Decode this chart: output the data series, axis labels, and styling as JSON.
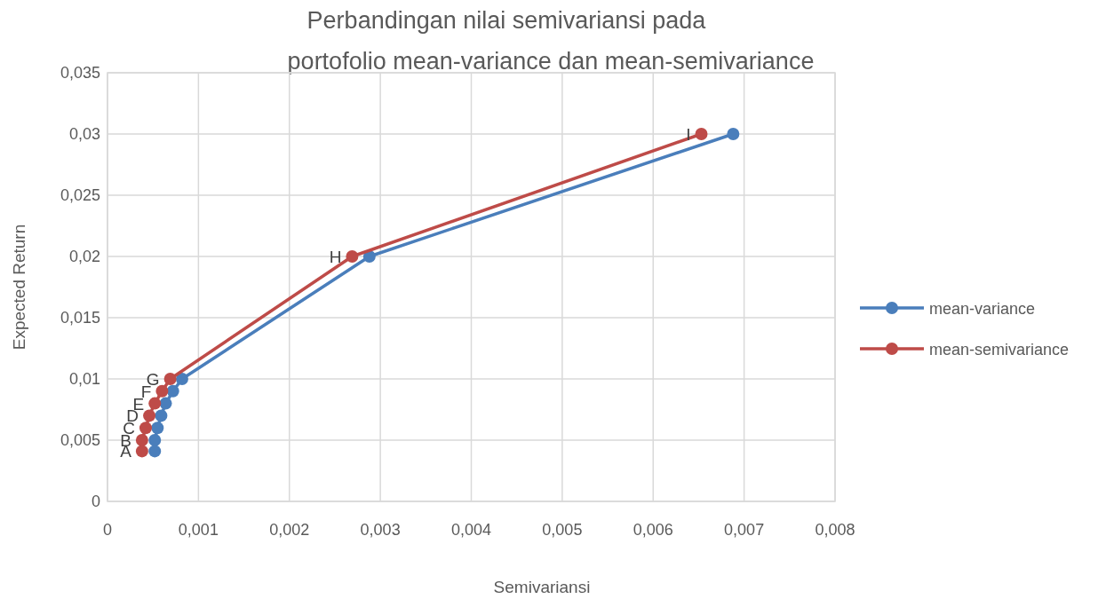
{
  "chart_data": {
    "type": "line",
    "title": "Perbandingan nilai semivariansi pada portofolio mean-variance dan mean-semivariance",
    "xlabel": "Semivariansi",
    "ylabel": "Expected Return",
    "series": [
      {
        "name": "mean-variance",
        "color": "#4a7ebb",
        "x": [
          0.00052,
          0.00052,
          0.00055,
          0.00059,
          0.00064,
          0.00072,
          0.00082,
          0.00288,
          0.00688
        ],
        "values": [
          0.0041,
          0.005,
          0.006,
          0.007,
          0.008,
          0.009,
          0.01,
          0.02,
          0.03
        ]
      },
      {
        "name": "mean-semivariance",
        "color": "#be4b48",
        "x": [
          0.00038,
          0.00038,
          0.00042,
          0.00046,
          0.00052,
          0.0006,
          0.00069,
          0.00269,
          0.00653
        ],
        "values": [
          0.0041,
          0.005,
          0.006,
          0.007,
          0.008,
          0.009,
          0.01,
          0.02,
          0.03
        ]
      }
    ],
    "annotations": [
      {
        "text": "A",
        "x": 0.00038,
        "y": 0.0041
      },
      {
        "text": "B",
        "x": 0.00038,
        "y": 0.005
      },
      {
        "text": "C",
        "x": 0.00042,
        "y": 0.006
      },
      {
        "text": "D",
        "x": 0.00046,
        "y": 0.007
      },
      {
        "text": "E",
        "x": 0.00052,
        "y": 0.008
      },
      {
        "text": "F",
        "x": 0.0006,
        "y": 0.009
      },
      {
        "text": "G",
        "x": 0.00069,
        "y": 0.01
      },
      {
        "text": "H",
        "x": 0.00269,
        "y": 0.02
      },
      {
        "text": "I",
        "x": 0.00653,
        "y": 0.03
      }
    ],
    "xlim": [
      0,
      0.008
    ],
    "xticks": [
      0,
      {
        "value": 0.001,
        "label": "0,001"
      },
      {
        "value": 0.002,
        "label": "0,002"
      },
      {
        "value": 0.003,
        "label": "0,003"
      },
      {
        "value": 0.004,
        "label": "0,004"
      },
      {
        "value": 0.005,
        "label": "0,005"
      },
      {
        "value": 0.006,
        "label": "0,006"
      },
      {
        "value": 0.007,
        "label": "0,007"
      },
      {
        "value": 0.008,
        "label": "0,008"
      }
    ],
    "ylim": [
      0,
      0.035
    ],
    "yticks": [
      0,
      {
        "value": 0.005,
        "label": "0,005"
      },
      {
        "value": 0.01,
        "label": "0,01"
      },
      {
        "value": 0.015,
        "label": "0,015"
      },
      {
        "value": 0.02,
        "label": "0,02"
      },
      {
        "value": 0.025,
        "label": "0,025"
      },
      {
        "value": 0.03,
        "label": "0,03"
      },
      {
        "value": 0.035,
        "label": "0,035"
      }
    ],
    "grid": true,
    "legend": "right",
    "marker": "circle",
    "line_style": "solid"
  }
}
